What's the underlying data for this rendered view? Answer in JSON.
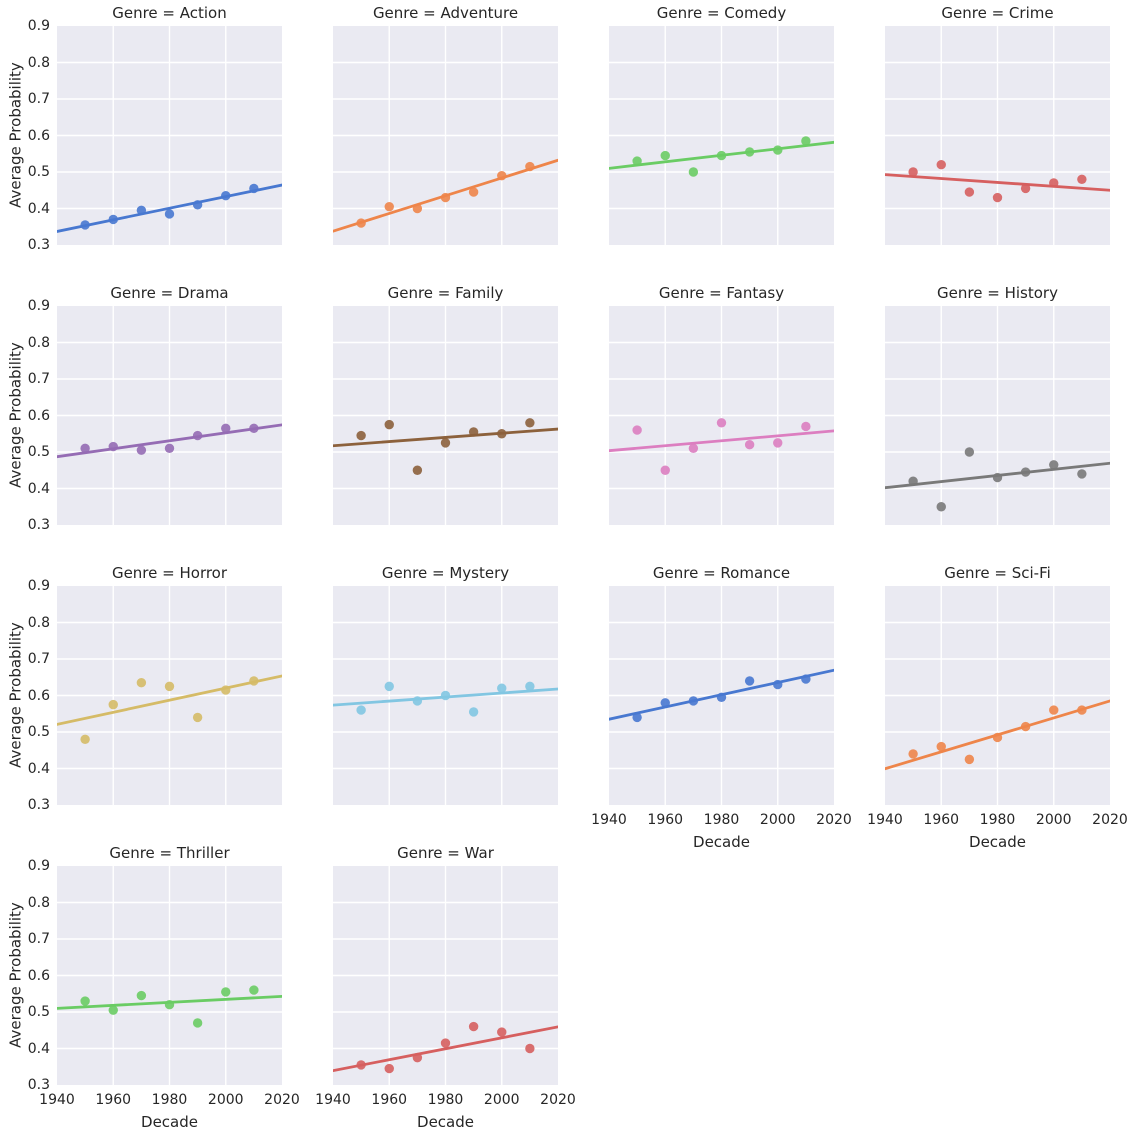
{
  "figure": {
    "background": "#ffffff",
    "axes_background": "#eaeaf2",
    "grid_color": "#ffffff",
    "text_color": "#262626"
  },
  "chart_data": {
    "type": "scatter",
    "facet_variable": "Genre",
    "xlabel": "Decade",
    "ylabel": "Average Probability",
    "x": [
      1950,
      1960,
      1970,
      1980,
      1990,
      2000,
      2010
    ],
    "xlim": [
      1940,
      2020
    ],
    "ylim": [
      0.3,
      0.9
    ],
    "xticks": [
      1940,
      1960,
      1980,
      2000,
      2020
    ],
    "yticks": [
      0.3,
      0.4,
      0.5,
      0.6,
      0.7,
      0.8,
      0.9
    ],
    "grid": true,
    "regression_line": "ordinary-least-squares fit per facet, drawn across full x range",
    "facets": [
      {
        "genre": "Action",
        "title": "Genre = Action",
        "color": "#4878d0",
        "show_xaxis": false,
        "values": [
          0.355,
          0.37,
          0.395,
          0.385,
          0.41,
          0.435,
          0.455
        ]
      },
      {
        "genre": "Adventure",
        "title": "Genre = Adventure",
        "color": "#ee854a",
        "show_xaxis": false,
        "values": [
          0.36,
          0.405,
          0.4,
          0.43,
          0.445,
          0.49,
          0.515
        ]
      },
      {
        "genre": "Comedy",
        "title": "Genre = Comedy",
        "color": "#6acc64",
        "show_xaxis": false,
        "values": [
          0.53,
          0.545,
          0.5,
          0.545,
          0.555,
          0.56,
          0.585
        ]
      },
      {
        "genre": "Crime",
        "title": "Genre = Crime",
        "color": "#d65f5f",
        "show_xaxis": false,
        "values": [
          0.5,
          0.52,
          0.445,
          0.43,
          0.455,
          0.47,
          0.48
        ]
      },
      {
        "genre": "Drama",
        "title": "Genre = Drama",
        "color": "#956cb4",
        "show_xaxis": false,
        "values": [
          0.51,
          0.515,
          0.505,
          0.51,
          0.545,
          0.565,
          0.565
        ]
      },
      {
        "genre": "Family",
        "title": "Genre = Family",
        "color": "#8c613c",
        "show_xaxis": false,
        "values": [
          0.545,
          0.575,
          0.45,
          0.525,
          0.555,
          0.55,
          0.58
        ]
      },
      {
        "genre": "Fantasy",
        "title": "Genre = Fantasy",
        "color": "#dc7ec0",
        "show_xaxis": false,
        "values": [
          0.56,
          0.45,
          0.51,
          0.58,
          0.52,
          0.525,
          0.57
        ]
      },
      {
        "genre": "History",
        "title": "Genre = History",
        "color": "#797979",
        "show_xaxis": false,
        "values": [
          0.42,
          0.35,
          0.5,
          0.43,
          0.445,
          0.465,
          0.44
        ]
      },
      {
        "genre": "Horror",
        "title": "Genre = Horror",
        "color": "#d5bb67",
        "show_xaxis": false,
        "values": [
          0.48,
          0.575,
          0.635,
          0.625,
          0.54,
          0.615,
          0.64
        ]
      },
      {
        "genre": "Mystery",
        "title": "Genre = Mystery",
        "color": "#82c6e2",
        "show_xaxis": false,
        "values": [
          0.56,
          0.625,
          0.585,
          0.6,
          0.555,
          0.62,
          0.625
        ]
      },
      {
        "genre": "Romance",
        "title": "Genre = Romance",
        "color": "#4878d0",
        "show_xaxis": true,
        "values": [
          0.54,
          0.58,
          0.585,
          0.595,
          0.64,
          0.63,
          0.645
        ]
      },
      {
        "genre": "Sci-Fi",
        "title": "Genre = Sci-Fi",
        "color": "#ee854a",
        "show_xaxis": true,
        "values": [
          0.44,
          0.46,
          0.425,
          0.485,
          0.515,
          0.56,
          0.56
        ]
      },
      {
        "genre": "Thriller",
        "title": "Genre = Thriller",
        "color": "#6acc64",
        "show_xaxis": true,
        "values": [
          0.53,
          0.505,
          0.545,
          0.52,
          0.47,
          0.555,
          0.56
        ]
      },
      {
        "genre": "War",
        "title": "Genre = War",
        "color": "#d65f5f",
        "show_xaxis": true,
        "values": [
          0.355,
          0.345,
          0.375,
          0.415,
          0.46,
          0.445,
          0.4
        ]
      }
    ]
  }
}
